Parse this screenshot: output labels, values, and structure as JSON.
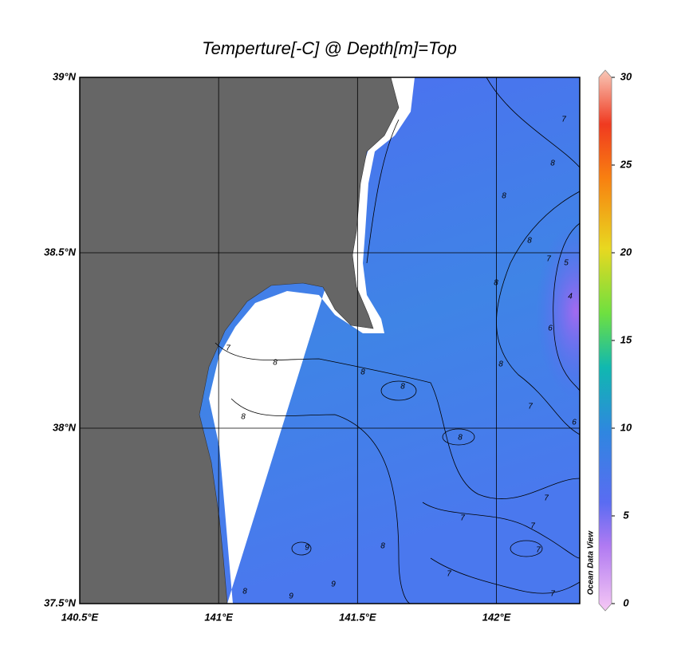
{
  "map": {
    "title": "Temperture[-C] @ Depth[m]=Top",
    "lat_range": [
      37.5,
      39
    ],
    "lon_range": [
      140.5,
      142.3
    ],
    "lat_ticks": [
      {
        "value": 39,
        "label": "39°N"
      },
      {
        "value": 38.5,
        "label": "38.5°N"
      },
      {
        "value": 38,
        "label": "38°N"
      },
      {
        "value": 37.5,
        "label": "37.5°N"
      }
    ],
    "lon_ticks": [
      {
        "value": 140.5,
        "label": "140.5°E"
      },
      {
        "value": 141,
        "label": "141°E"
      },
      {
        "value": 141.5,
        "label": "141.5°E"
      },
      {
        "value": 142,
        "label": "142°E"
      }
    ],
    "colorbar": {
      "range": [
        0,
        30
      ],
      "ticks": [
        0,
        5,
        10,
        15,
        20,
        25,
        30
      ]
    },
    "credit": "Ocean Data View",
    "contour_labels": [
      7,
      8,
      8,
      8,
      7,
      5,
      4,
      6,
      8,
      8,
      7,
      8,
      8,
      8,
      8,
      7,
      8,
      6,
      7,
      7,
      7,
      7,
      9,
      9,
      9,
      8,
      8,
      7,
      7
    ]
  }
}
